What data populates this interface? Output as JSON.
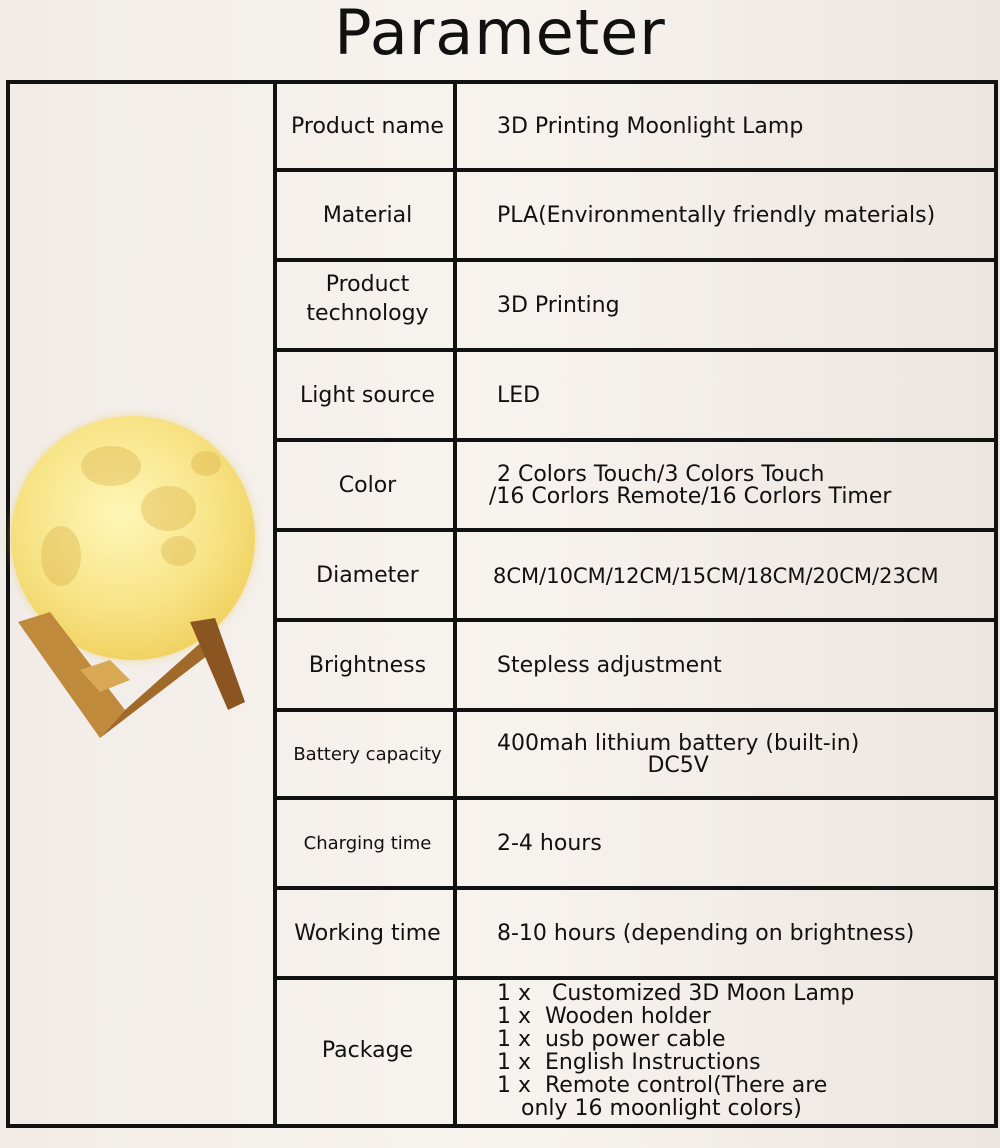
{
  "title": "Parameter",
  "image": {
    "subject": "moon-lamp-on-wooden-stand"
  },
  "rows": [
    {
      "label": "Product name",
      "value": [
        "3D Printing Moonlight Lamp"
      ]
    },
    {
      "label": "Material",
      "value": [
        "PLA(Environmentally friendly materials)"
      ]
    },
    {
      "label": "Product technology",
      "value": [
        "3D Printing"
      ]
    },
    {
      "label": "Light source",
      "value": [
        "LED"
      ]
    },
    {
      "label": "Color",
      "value": [
        "2 Colors Touch/3 Colors Touch",
        "/16 Corlors Remote/16 Corlors Timer"
      ]
    },
    {
      "label": "Diameter",
      "value": [
        "8CM/10CM/12CM/15CM/18CM/20CM/23CM"
      ]
    },
    {
      "label": "Brightness",
      "value": [
        "Stepless adjustment"
      ]
    },
    {
      "label": "Battery capacity",
      "value": [
        "400mah lithium battery (built-in)",
        "DC5V"
      ]
    },
    {
      "label": "Charging time",
      "value": [
        "2-4 hours"
      ]
    },
    {
      "label": "Working time",
      "value": [
        "8-10 hours (depending on brightness)"
      ]
    },
    {
      "label": "Package",
      "value": [
        "1 x   Customized 3D Moon Lamp",
        "1 x  Wooden holder",
        "1 x  usb power cable",
        "1 x  English Instructions",
        "1 x  Remote control(There are",
        "only 16 moonlight colors)"
      ]
    }
  ]
}
